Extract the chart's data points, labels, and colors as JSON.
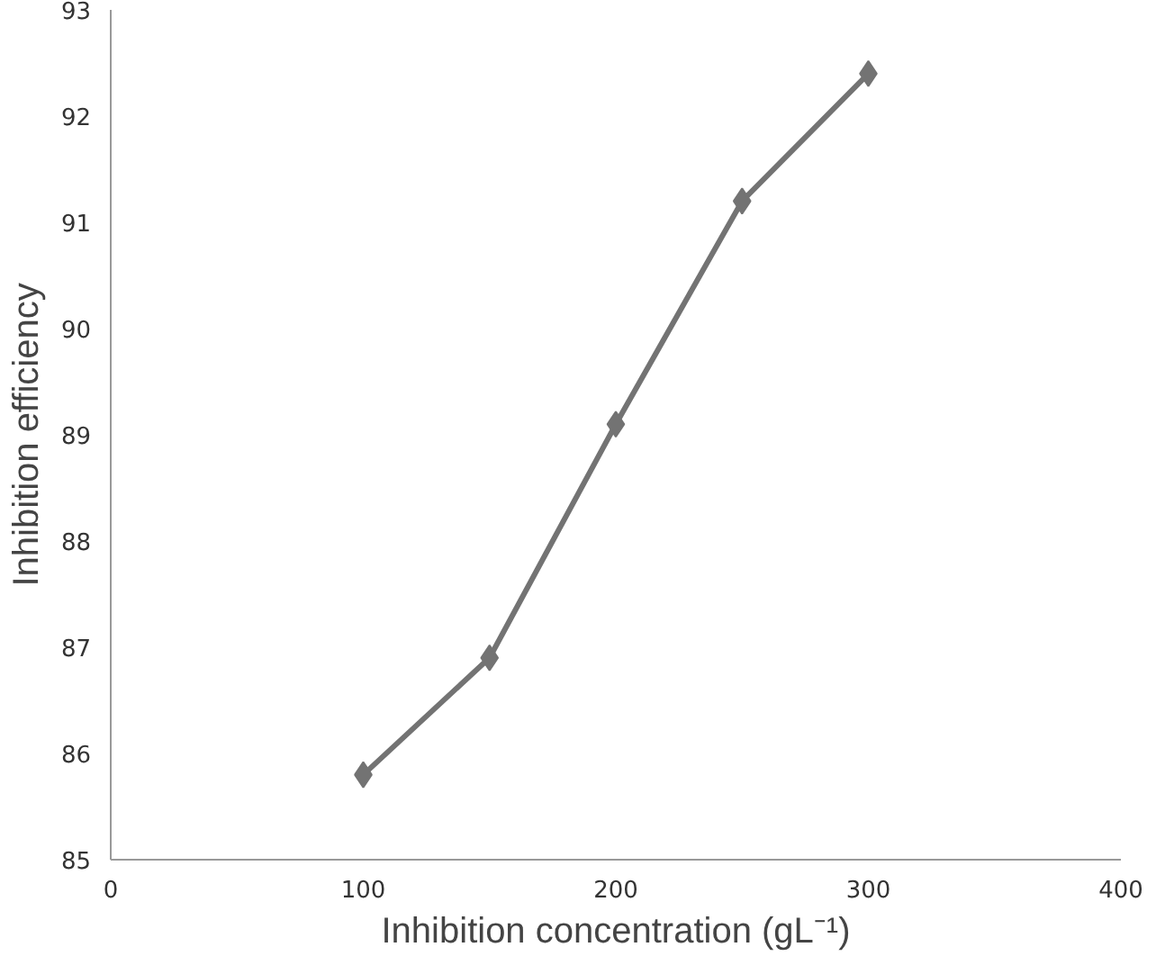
{
  "chart_data": {
    "type": "line",
    "xlabel": "Inhibition concentration (gL⁻¹)",
    "ylabel": "Inhibition efficiency",
    "x": [
      100,
      150,
      200,
      250,
      300
    ],
    "series": [
      {
        "color": "#737373",
        "values": [
          85.8,
          86.9,
          89.1,
          91.2,
          92.4
        ]
      }
    ],
    "xlim": [
      0,
      400
    ],
    "xticks": [
      0,
      100,
      200,
      300,
      400
    ],
    "ylim": [
      85,
      93
    ],
    "yticks": [
      85,
      86,
      87,
      88,
      89,
      90,
      91,
      92,
      93
    ],
    "grid": false,
    "marker": "diamond",
    "line_style": "solid"
  }
}
